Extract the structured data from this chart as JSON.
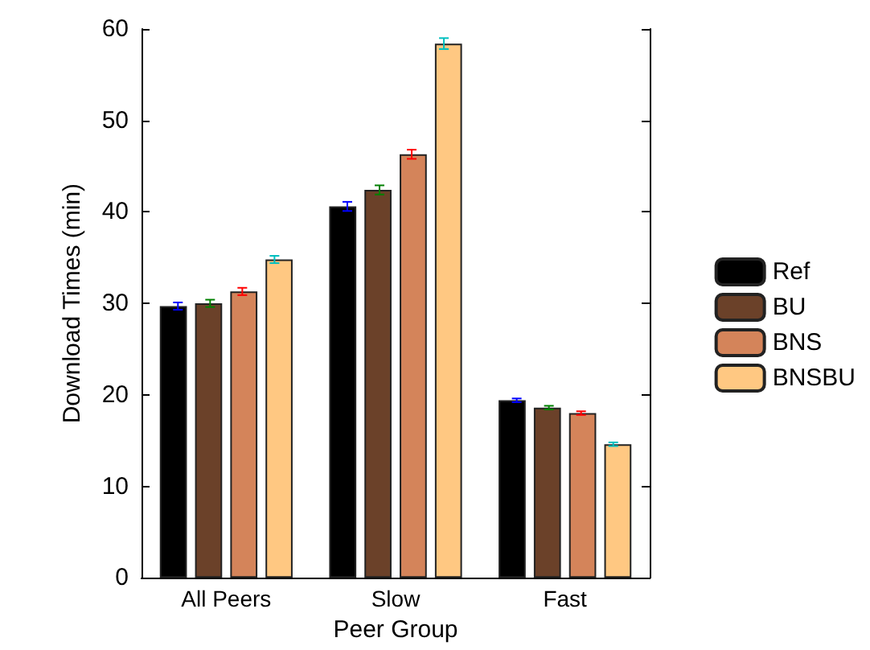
{
  "chart_data": {
    "type": "bar",
    "xlabel": "Peer Group",
    "ylabel": "Download Times (min)",
    "categories": [
      "All Peers",
      "Slow",
      "Fast"
    ],
    "series": [
      {
        "name": "Ref",
        "color": "#000000",
        "values": [
          29.7,
          40.6,
          19.4
        ],
        "errors": [
          0.4,
          0.5,
          0.2
        ]
      },
      {
        "name": "BU",
        "color": "#6b4129",
        "values": [
          30.0,
          42.4,
          18.6
        ],
        "errors": [
          0.4,
          0.5,
          0.2
        ]
      },
      {
        "name": "BNS",
        "color": "#d4845a",
        "values": [
          31.3,
          46.3,
          18.0
        ],
        "errors": [
          0.4,
          0.5,
          0.2
        ]
      },
      {
        "name": "BNSBU",
        "color": "#ffc882",
        "values": [
          34.8,
          58.4,
          14.6
        ],
        "errors": [
          0.4,
          0.6,
          0.2
        ]
      }
    ],
    "ylim": [
      0,
      60
    ],
    "yticks": [
      0,
      10,
      20,
      30,
      40,
      50,
      60
    ],
    "grid": false,
    "legend": "right"
  }
}
